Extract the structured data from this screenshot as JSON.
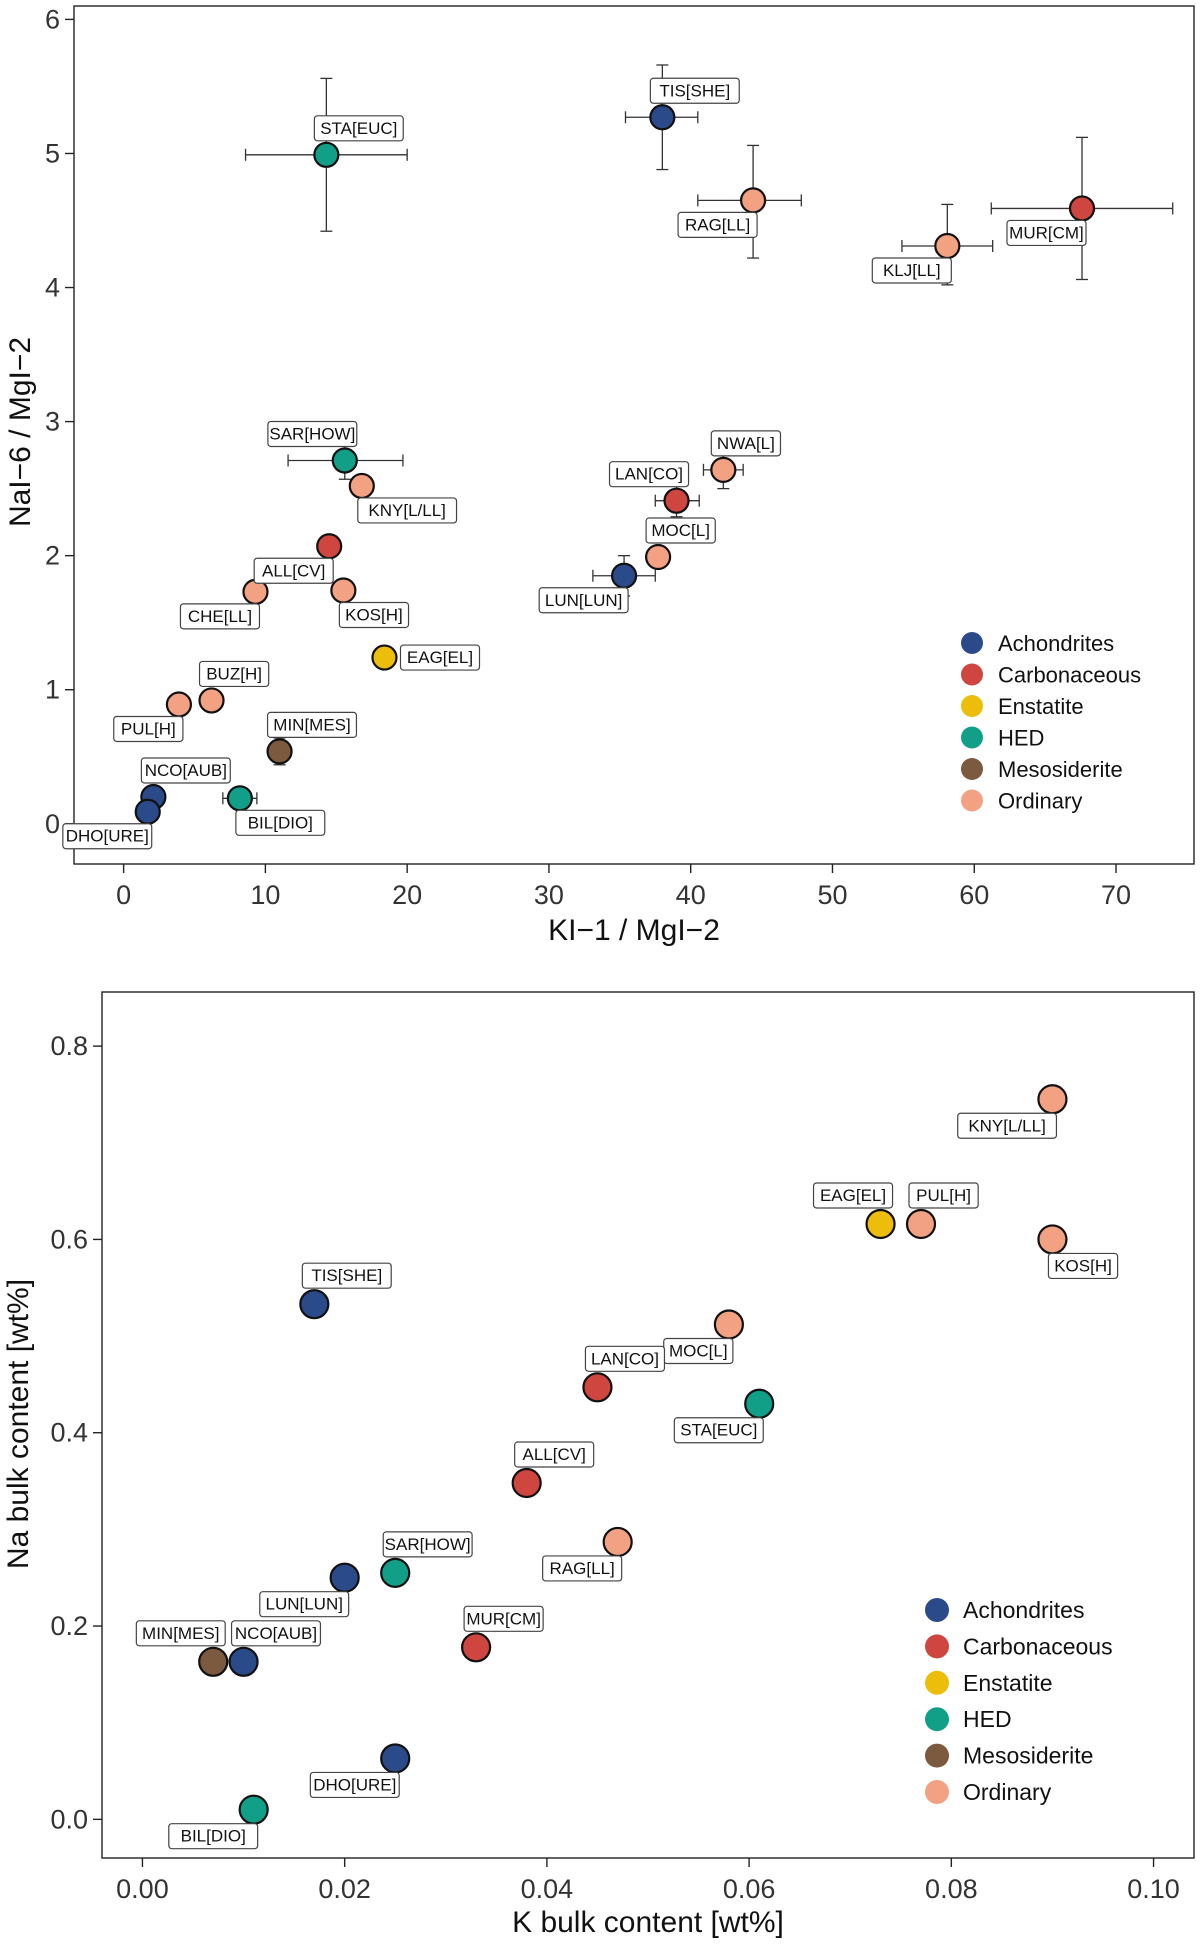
{
  "category_colors": {
    "Achondrites": "#2b4a8a",
    "Carbonaceous": "#cf4540",
    "Enstatite": "#ecbd0a",
    "HED": "#11a087",
    "Mesosiderite": "#7b5a3f",
    "Ordinary": "#f3a183"
  },
  "legend": [
    "Achondrites",
    "Carbonaceous",
    "Enstatite",
    "HED",
    "Mesosiderite",
    "Ordinary"
  ],
  "chart_data": [
    {
      "type": "scatter",
      "title": "",
      "xlabel": "KI−1 / MgI−2",
      "ylabel": "NaI−6 / MgI−2",
      "xlim": [
        -3.5,
        75.5
      ],
      "ylim": [
        -0.3,
        6.1
      ],
      "xticks": [
        0,
        10,
        20,
        30,
        40,
        50,
        60,
        70
      ],
      "yticks": [
        0,
        1,
        2,
        3,
        4,
        5,
        6
      ],
      "legend_position": "bottom-right",
      "points": [
        {
          "label": "STA[EUC]",
          "cat": "HED",
          "x": 14.3,
          "y": 4.99,
          "xerr": [
            8.6,
            20.0
          ],
          "yerr": [
            4.42,
            5.56
          ],
          "lpos": "tr"
        },
        {
          "label": "TIS[SHE]",
          "cat": "Achondrites",
          "x": 38.0,
          "y": 5.27,
          "xerr": [
            35.4,
            40.5
          ],
          "yerr": [
            4.88,
            5.66
          ],
          "lpos": "tr"
        },
        {
          "label": "RAG[LL]",
          "cat": "Ordinary",
          "x": 44.4,
          "y": 4.65,
          "xerr": [
            40.5,
            47.8
          ],
          "yerr": [
            4.22,
            5.06
          ],
          "lpos": "bl"
        },
        {
          "label": "MUR[CM]",
          "cat": "Carbonaceous",
          "x": 67.6,
          "y": 4.59,
          "xerr": [
            61.2,
            74.0
          ],
          "yerr": [
            4.06,
            5.12
          ],
          "lpos": "bl"
        },
        {
          "label": "KLJ[LL]",
          "cat": "Ordinary",
          "x": 58.1,
          "y": 4.31,
          "xerr": [
            54.9,
            61.3
          ],
          "yerr": [
            4.02,
            4.62
          ],
          "lpos": "bl"
        },
        {
          "label": "SAR[HOW]",
          "cat": "HED",
          "x": 15.6,
          "y": 2.71,
          "xerr": [
            11.6,
            19.7
          ],
          "yerr": [
            2.57,
            2.85
          ],
          "lpos": "tl"
        },
        {
          "label": "KNY[L/LL]",
          "cat": "Ordinary",
          "x": 16.8,
          "y": 2.52,
          "lpos": "br"
        },
        {
          "label": "NWA[L]",
          "cat": "Ordinary",
          "x": 42.3,
          "y": 2.64,
          "xerr": [
            40.9,
            43.7
          ],
          "yerr": [
            2.5,
            2.76
          ],
          "lpos": "tr"
        },
        {
          "label": "LAN[CO]",
          "cat": "Carbonaceous",
          "x": 39.0,
          "y": 2.41,
          "xerr": [
            37.5,
            40.6
          ],
          "yerr": [
            2.29,
            2.53
          ],
          "lpos": "tl"
        },
        {
          "label": "MOC[L]",
          "cat": "Ordinary",
          "x": 37.7,
          "y": 1.99,
          "lpos": "tr"
        },
        {
          "label": "LUN[LUN]",
          "cat": "Achondrites",
          "x": 35.3,
          "y": 1.85,
          "xerr": [
            33.1,
            37.5
          ],
          "yerr": [
            1.7,
            2.0
          ],
          "lpos": "bl"
        },
        {
          "label": "ALL[CV]",
          "cat": "Carbonaceous",
          "x": 14.5,
          "y": 2.07,
          "lpos": "bl"
        },
        {
          "label": "CHE[LL]",
          "cat": "Ordinary",
          "x": 9.3,
          "y": 1.73,
          "lpos": "bl"
        },
        {
          "label": "KOS[H]",
          "cat": "Ordinary",
          "x": 15.5,
          "y": 1.74,
          "lpos": "br"
        },
        {
          "label": "EAG[EL]",
          "cat": "Enstatite",
          "x": 18.4,
          "y": 1.24,
          "lpos": "r"
        },
        {
          "label": "BUZ[H]",
          "cat": "Ordinary",
          "x": 6.2,
          "y": 0.92,
          "lpos": "tr"
        },
        {
          "label": "PUL[H]",
          "cat": "Ordinary",
          "x": 3.9,
          "y": 0.89,
          "lpos": "bl"
        },
        {
          "label": "MIN[MES]",
          "cat": "Mesosiderite",
          "x": 11.0,
          "y": 0.54,
          "yerr": [
            0.44,
            0.64
          ],
          "lpos": "tr"
        },
        {
          "label": "NCO[AUB]",
          "cat": "Achondrites",
          "x": 2.1,
          "y": 0.2,
          "lpos": "tr"
        },
        {
          "label": "BIL[DIO]",
          "cat": "HED",
          "x": 8.2,
          "y": 0.19,
          "xerr": [
            7.0,
            9.4
          ],
          "lpos": "br"
        },
        {
          "label": "DHO[URE]",
          "cat": "Achondrites",
          "x": 1.7,
          "y": 0.09,
          "lpos": "bl"
        }
      ]
    },
    {
      "type": "scatter",
      "title": "",
      "xlabel": "K bulk content [wt%]",
      "ylabel": "Na bulk content [wt%]",
      "xlim": [
        -0.004,
        0.104
      ],
      "ylim": [
        -0.04,
        0.856
      ],
      "xticks": [
        0.0,
        0.02,
        0.04,
        0.06,
        0.08,
        0.1
      ],
      "xtick_labels": [
        "0.00",
        "0.02",
        "0.04",
        "0.06",
        "0.08",
        "0.10"
      ],
      "yticks": [
        0.0,
        0.2,
        0.4,
        0.6,
        0.8
      ],
      "ytick_labels": [
        "0.0",
        "0.2",
        "0.4",
        "0.6",
        "0.8"
      ],
      "legend_position": "bottom-right",
      "points": [
        {
          "label": "KNY[L/LL]",
          "cat": "Ordinary",
          "x": 0.09,
          "y": 0.745,
          "lpos": "bl"
        },
        {
          "label": "EAG[EL]",
          "cat": "Enstatite",
          "x": 0.073,
          "y": 0.616,
          "lpos": "tl"
        },
        {
          "label": "PUL[H]",
          "cat": "Ordinary",
          "x": 0.077,
          "y": 0.616,
          "lpos": "tr"
        },
        {
          "label": "KOS[H]",
          "cat": "Ordinary",
          "x": 0.09,
          "y": 0.6,
          "lpos": "br"
        },
        {
          "label": "TIS[SHE]",
          "cat": "Achondrites",
          "x": 0.017,
          "y": 0.533,
          "lpos": "tr"
        },
        {
          "label": "MOC[L]",
          "cat": "Ordinary",
          "x": 0.058,
          "y": 0.512,
          "lpos": "bl"
        },
        {
          "label": "LAN[CO]",
          "cat": "Carbonaceous",
          "x": 0.045,
          "y": 0.447,
          "lpos": "tr"
        },
        {
          "label": "STA[EUC]",
          "cat": "HED",
          "x": 0.061,
          "y": 0.43,
          "lpos": "bl"
        },
        {
          "label": "ALL[CV]",
          "cat": "Carbonaceous",
          "x": 0.038,
          "y": 0.348,
          "lpos": "tr"
        },
        {
          "label": "RAG[LL]",
          "cat": "Ordinary",
          "x": 0.047,
          "y": 0.287,
          "lpos": "bl"
        },
        {
          "label": "LUN[LUN]",
          "cat": "Achondrites",
          "x": 0.02,
          "y": 0.25,
          "lpos": "bl"
        },
        {
          "label": "SAR[HOW]",
          "cat": "HED",
          "x": 0.025,
          "y": 0.255,
          "lpos": "tr"
        },
        {
          "label": "MUR[CM]",
          "cat": "Carbonaceous",
          "x": 0.033,
          "y": 0.178,
          "lpos": "tr"
        },
        {
          "label": "MIN[MES]",
          "cat": "Mesosiderite",
          "x": 0.007,
          "y": 0.163,
          "lpos": "tl"
        },
        {
          "label": "NCO[AUB]",
          "cat": "Achondrites",
          "x": 0.01,
          "y": 0.163,
          "lpos": "tr"
        },
        {
          "label": "DHO[URE]",
          "cat": "Achondrites",
          "x": 0.025,
          "y": 0.063,
          "lpos": "bl"
        },
        {
          "label": "BIL[DIO]",
          "cat": "HED",
          "x": 0.011,
          "y": 0.01,
          "lpos": "bl"
        }
      ]
    }
  ]
}
